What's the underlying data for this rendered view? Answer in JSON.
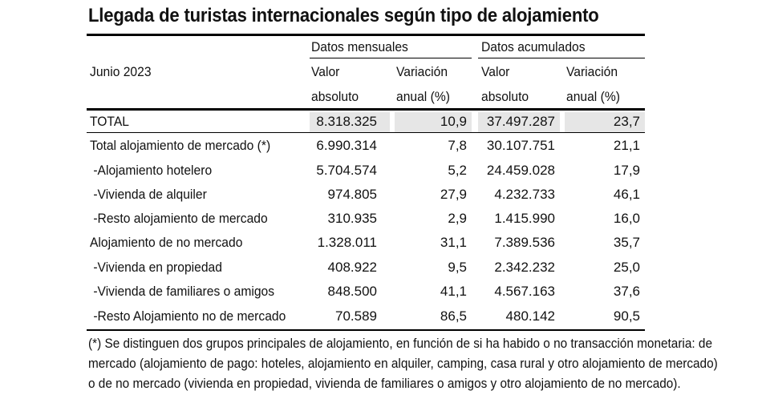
{
  "title": "Llegada de turistas internacionales según tipo de alojamiento",
  "header": {
    "period": "Junio 2023",
    "group_monthly": "Datos mensuales",
    "group_cumulative": "Datos acumulados",
    "col_value_line1": "Valor",
    "col_value_line2": "absoluto",
    "col_var_line1": "Variación",
    "col_var_line2": "anual (%)"
  },
  "rows": [
    {
      "label": "TOTAL",
      "m_abs": "8.318.325",
      "m_var": "10,9",
      "c_abs": "37.497.287",
      "c_var": "23,7"
    },
    {
      "label": "Total alojamiento de mercado (*)",
      "m_abs": "6.990.314",
      "m_var": "7,8",
      "c_abs": "30.107.751",
      "c_var": "21,1"
    },
    {
      "label": " -Alojamiento hotelero",
      "m_abs": "5.704.574",
      "m_var": "5,2",
      "c_abs": "24.459.028",
      "c_var": "17,9"
    },
    {
      "label": " -Vivienda de alquiler",
      "m_abs": "974.805",
      "m_var": "27,9",
      "c_abs": "4.232.733",
      "c_var": "46,1"
    },
    {
      "label": " -Resto alojamiento de mercado",
      "m_abs": "310.935",
      "m_var": "2,9",
      "c_abs": "1.415.990",
      "c_var": "16,0"
    },
    {
      "label": "Alojamiento de no mercado",
      "m_abs": "1.328.011",
      "m_var": "31,1",
      "c_abs": "7.389.536",
      "c_var": "35,7"
    },
    {
      "label": " -Vivienda en propiedad",
      "m_abs": "408.922",
      "m_var": "9,5",
      "c_abs": "2.342.232",
      "c_var": "25,0"
    },
    {
      "label": " -Vivienda de familiares o amigos",
      "m_abs": "848.500",
      "m_var": "41,1",
      "c_abs": "4.567.163",
      "c_var": "37,6"
    },
    {
      "label": " -Resto Alojamiento no de mercado",
      "m_abs": "70.589",
      "m_var": "86,5",
      "c_abs": "480.142",
      "c_var": "90,5"
    }
  ],
  "footnote": {
    "line1": "(*) Se distinguen dos grupos principales de alojamiento, en función de si ha habido o no transacción monetaria: de",
    "line2": "mercado (alojamiento de pago: hoteles, alojamiento en alquiler, camping, casa rural y otro alojamiento de mercado)",
    "line3": "o de no mercado (vivienda en propiedad, vivienda de familiares o amigos y otro alojamiento de no mercado)."
  }
}
